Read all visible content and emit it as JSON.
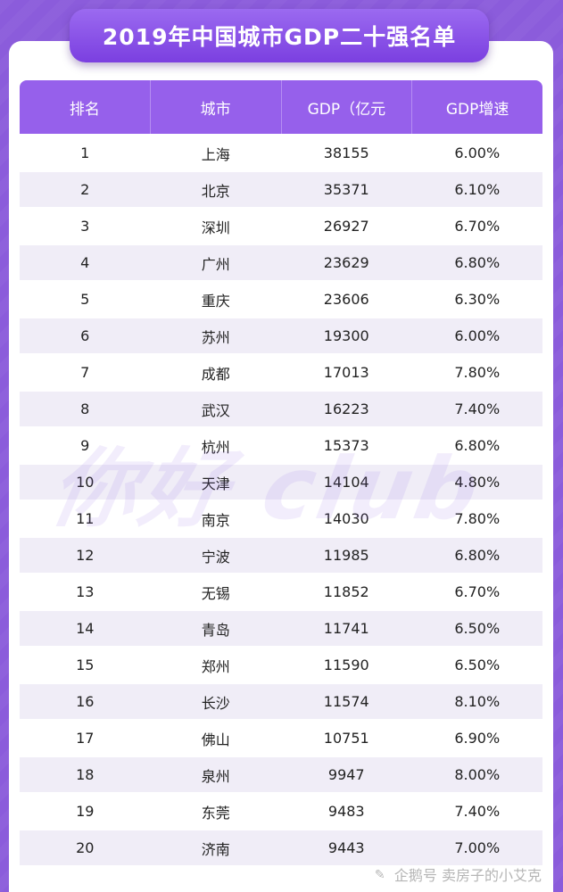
{
  "title": "2019年中国城市GDP二十强名单",
  "table": {
    "headers": [
      "排名",
      "城市",
      "GDP（亿元",
      "GDP增速"
    ],
    "rows": [
      [
        "1",
        "上海",
        "38155",
        "6.00%"
      ],
      [
        "2",
        "北京",
        "35371",
        "6.10%"
      ],
      [
        "3",
        "深圳",
        "26927",
        "6.70%"
      ],
      [
        "4",
        "广州",
        "23629",
        "6.80%"
      ],
      [
        "5",
        "重庆",
        "23606",
        "6.30%"
      ],
      [
        "6",
        "苏州",
        "19300",
        "6.00%"
      ],
      [
        "7",
        "成都",
        "17013",
        "7.80%"
      ],
      [
        "8",
        "武汉",
        "16223",
        "7.40%"
      ],
      [
        "9",
        "杭州",
        "15373",
        "6.80%"
      ],
      [
        "10",
        "天津",
        "14104",
        "4.80%"
      ],
      [
        "11",
        "南京",
        "14030",
        "7.80%"
      ],
      [
        "12",
        "宁波",
        "11985",
        "6.80%"
      ],
      [
        "13",
        "无锡",
        "11852",
        "6.70%"
      ],
      [
        "14",
        "青岛",
        "11741",
        "6.50%"
      ],
      [
        "15",
        "郑州",
        "11590",
        "6.50%"
      ],
      [
        "16",
        "长沙",
        "11574",
        "8.10%"
      ],
      [
        "17",
        "佛山",
        "10751",
        "6.90%"
      ],
      [
        "18",
        "泉州",
        "9947",
        "8.00%"
      ],
      [
        "19",
        "东莞",
        "9483",
        "7.40%"
      ],
      [
        "20",
        "济南",
        "9443",
        "7.00%"
      ]
    ]
  },
  "watermark": "你好 club",
  "footer": "企鹅号 卖房子的小艾克",
  "colors": {
    "background": "#8B5CDB",
    "header": "#9660EB",
    "row_alt": "#F0EDF7"
  }
}
